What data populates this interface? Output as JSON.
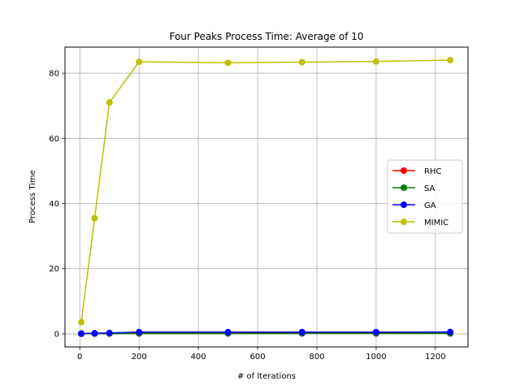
{
  "chart_data": {
    "type": "line",
    "title": "Four Peaks Process Time: Average of 10",
    "xlabel": "# of Iterations",
    "ylabel": "Process Time",
    "xlim": [
      -50,
      1310
    ],
    "ylim": [
      -4,
      88
    ],
    "xticks": [
      0,
      200,
      400,
      600,
      800,
      1000,
      1200
    ],
    "yticks": [
      0,
      20,
      40,
      60,
      80
    ],
    "grid": true,
    "legend_position": "center-right",
    "x": [
      5,
      50,
      100,
      200,
      500,
      750,
      1000,
      1250
    ],
    "series": [
      {
        "name": "RHC",
        "color": "#ff0000",
        "values": [
          0.05,
          0.08,
          0.1,
          0.15,
          0.15,
          0.16,
          0.16,
          0.17
        ]
      },
      {
        "name": "SA",
        "color": "#008000",
        "values": [
          0.05,
          0.07,
          0.09,
          0.12,
          0.13,
          0.13,
          0.14,
          0.14
        ]
      },
      {
        "name": "GA",
        "color": "#0000ff",
        "values": [
          0.1,
          0.2,
          0.3,
          0.55,
          0.55,
          0.55,
          0.56,
          0.57
        ]
      },
      {
        "name": "MIMIC",
        "color": "#bfbf00",
        "values": [
          3.6,
          35.5,
          71.0,
          83.5,
          83.2,
          83.4,
          83.6,
          84.0
        ]
      }
    ]
  }
}
